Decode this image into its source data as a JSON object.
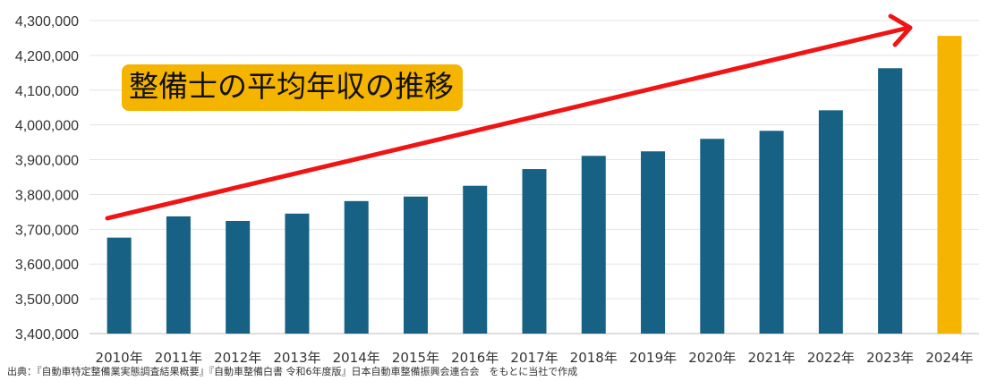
{
  "colors": {
    "bar": "#176185",
    "highlight": "#F5B400",
    "arrow": "#F01414",
    "title_bg": "#F5B400"
  },
  "chart_data": {
    "type": "bar",
    "title": "整備士の平均年収の推移",
    "xlabel": "",
    "ylabel": "",
    "categories": [
      "2010年",
      "2011年",
      "2012年",
      "2013年",
      "2014年",
      "2015年",
      "2016年",
      "2017年",
      "2018年",
      "2019年",
      "2020年",
      "2021年",
      "2022年",
      "2023年",
      "2024年"
    ],
    "values": [
      3676000,
      3737000,
      3724000,
      3745000,
      3781000,
      3794000,
      3825000,
      3873000,
      3911000,
      3924000,
      3960000,
      3983000,
      4042000,
      4163000,
      4256000
    ],
    "highlight_index": 14,
    "ylim": [
      3400000,
      4300000
    ],
    "yticks": [
      "3,400,000",
      "3,500,000",
      "3,600,000",
      "3,700,000",
      "3,800,000",
      "3,900,000",
      "4,000,000",
      "4,100,000",
      "4,200,000",
      "4,300,000"
    ],
    "grid": true,
    "annotation": "upward trend arrow"
  },
  "source": "出典：『自動車特定整備業実態調査結果概要』『自動車整備白書 令和6年度版』日本自動車整備振興会連合会　をもとに当社で作成"
}
